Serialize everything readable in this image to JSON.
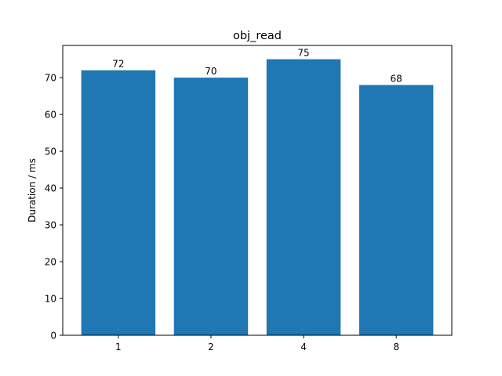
{
  "chart_data": {
    "type": "bar",
    "title": "obj_read",
    "xlabel": "",
    "ylabel": "Duration / ms",
    "categories": [
      "1",
      "2",
      "4",
      "8"
    ],
    "series": [
      {
        "values": [
          72,
          70,
          75,
          68
        ]
      }
    ],
    "data_labels": [
      "72",
      "70",
      "75",
      "68"
    ],
    "yticks": [
      0,
      10,
      20,
      30,
      40,
      50,
      60,
      70
    ],
    "ylim": [
      0,
      78.75
    ],
    "grid": false,
    "legend": "none",
    "bar_color": "#1f77b4"
  }
}
